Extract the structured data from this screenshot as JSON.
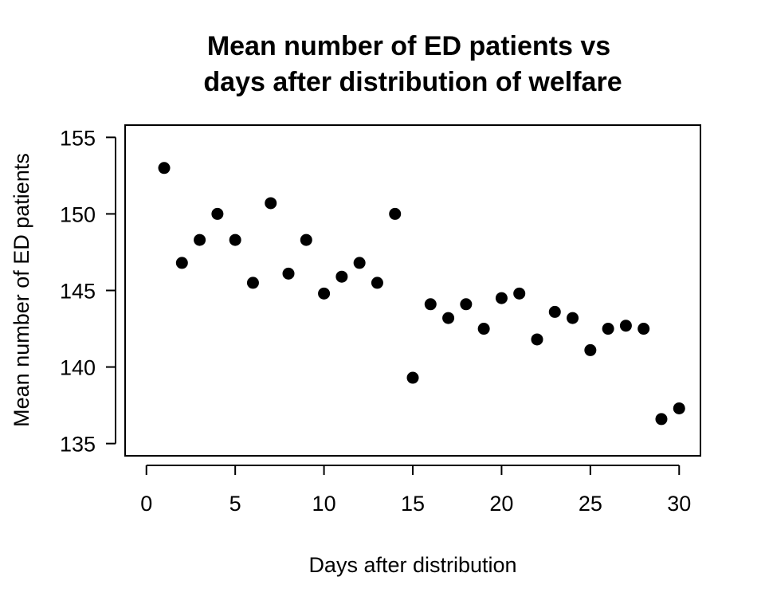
{
  "chart_data": {
    "type": "scatter",
    "title": [
      "Mean number of ED patients vs",
      "days after distribution of welfare"
    ],
    "xlabel": "Days after distribution",
    "ylabel": "Mean number of ED patients",
    "xlim": [
      -1.2,
      31.2
    ],
    "ylim": [
      134.2,
      155.8
    ],
    "x_ticks": [
      0,
      5,
      10,
      15,
      20,
      25,
      30
    ],
    "y_ticks": [
      135,
      140,
      145,
      150,
      155
    ],
    "grid": false,
    "legend": "none",
    "marker_color": "#000000",
    "x": [
      1,
      2,
      3,
      4,
      5,
      6,
      7,
      8,
      9,
      10,
      11,
      12,
      13,
      14,
      15,
      16,
      17,
      18,
      19,
      20,
      21,
      22,
      23,
      24,
      25,
      26,
      27,
      28,
      29,
      30
    ],
    "y": [
      153.0,
      146.8,
      148.3,
      150.0,
      148.3,
      145.5,
      150.7,
      146.1,
      148.3,
      144.8,
      145.9,
      146.8,
      145.5,
      150.0,
      139.3,
      144.1,
      143.2,
      144.1,
      142.5,
      144.5,
      144.8,
      141.8,
      143.6,
      143.2,
      141.1,
      142.5,
      142.7,
      142.5,
      136.6,
      137.3
    ]
  }
}
